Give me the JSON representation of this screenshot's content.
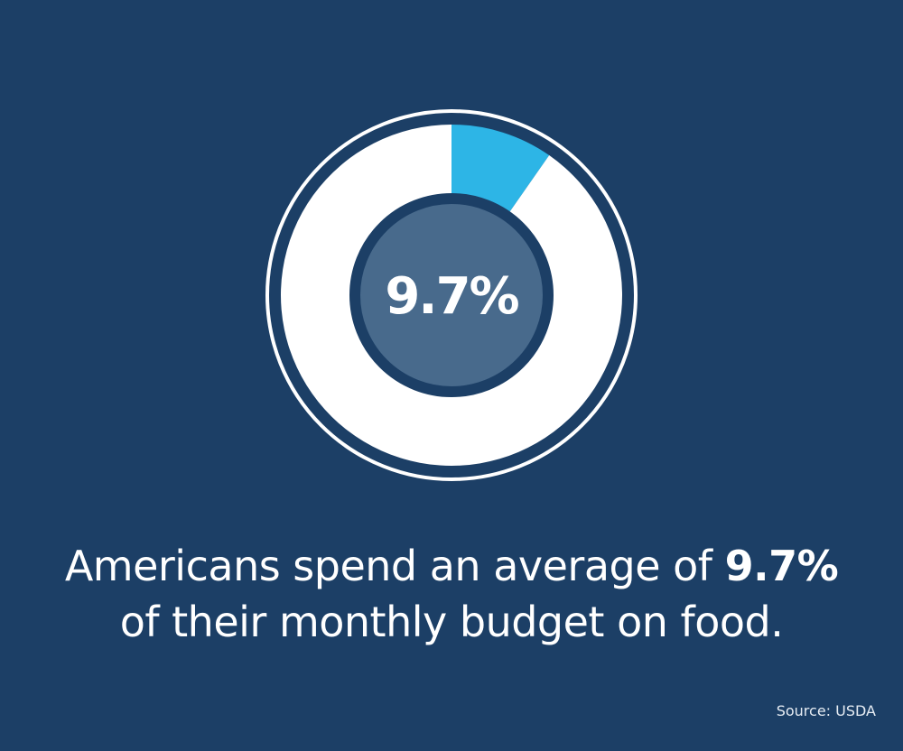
{
  "colors": {
    "background": "#1c3f66",
    "ring": "#ffffff",
    "highlight": "#2db5e6",
    "center_fill": "#486a8c"
  },
  "chart_data": {
    "type": "pie",
    "slices": [
      {
        "value": 9.7,
        "color": "#2db5e6"
      },
      {
        "value": 90.3,
        "color": "#ffffff"
      }
    ],
    "center_label": "9.7%"
  },
  "caption": {
    "line1_text": "Americans spend an average of ",
    "line1_value": "9.7%",
    "line2": "of their monthly budget on food."
  },
  "source": "Source: USDA"
}
